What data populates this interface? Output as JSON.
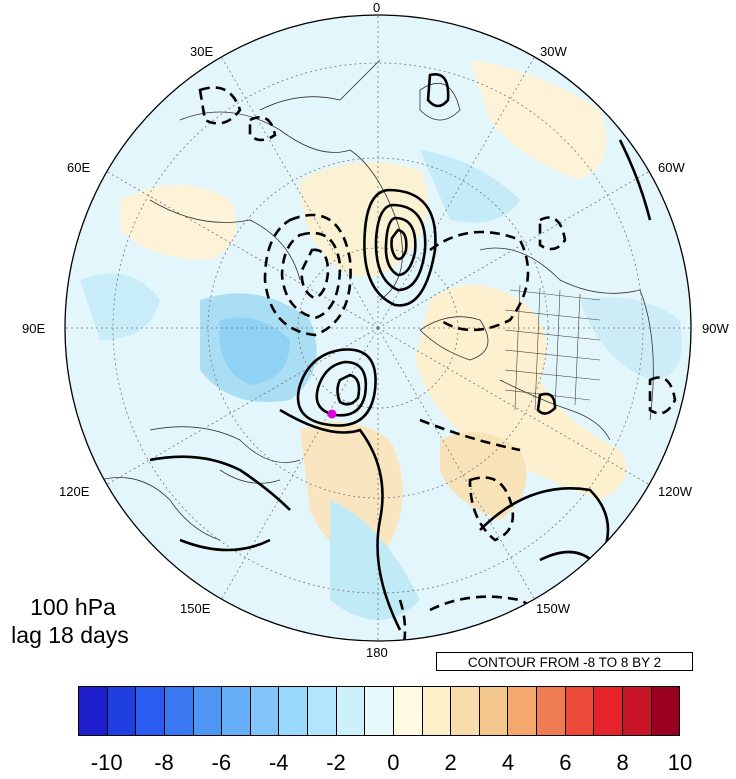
{
  "level_label": "100 hPa",
  "lag_label": "lag 18 days",
  "contour_note": "CONTOUR FROM -8 TO 8 BY 2",
  "longitude_labels": [
    "0",
    "30W",
    "60W",
    "90W",
    "120W",
    "150W",
    "180",
    "150E",
    "120E",
    "90E",
    "60E",
    "30E"
  ],
  "colorbar": {
    "labels": [
      "-10",
      "-8",
      "-6",
      "-4",
      "-2",
      "0",
      "2",
      "4",
      "6",
      "8",
      "10"
    ],
    "colors": [
      "#1e1ecc",
      "#1f3fe0",
      "#2a5cf0",
      "#3a78f2",
      "#4e96f4",
      "#66aef6",
      "#80c4f8",
      "#98d8fa",
      "#b4e6fb",
      "#cdf1fc",
      "#e6fafd",
      "#fffbe2",
      "#fcf0c8",
      "#f8ddaa",
      "#f4c88c",
      "#f3a96e",
      "#f07c54",
      "#ec4a3a",
      "#e5232b",
      "#c81427",
      "#9a0020"
    ]
  },
  "marker_color": "#e000e0"
}
